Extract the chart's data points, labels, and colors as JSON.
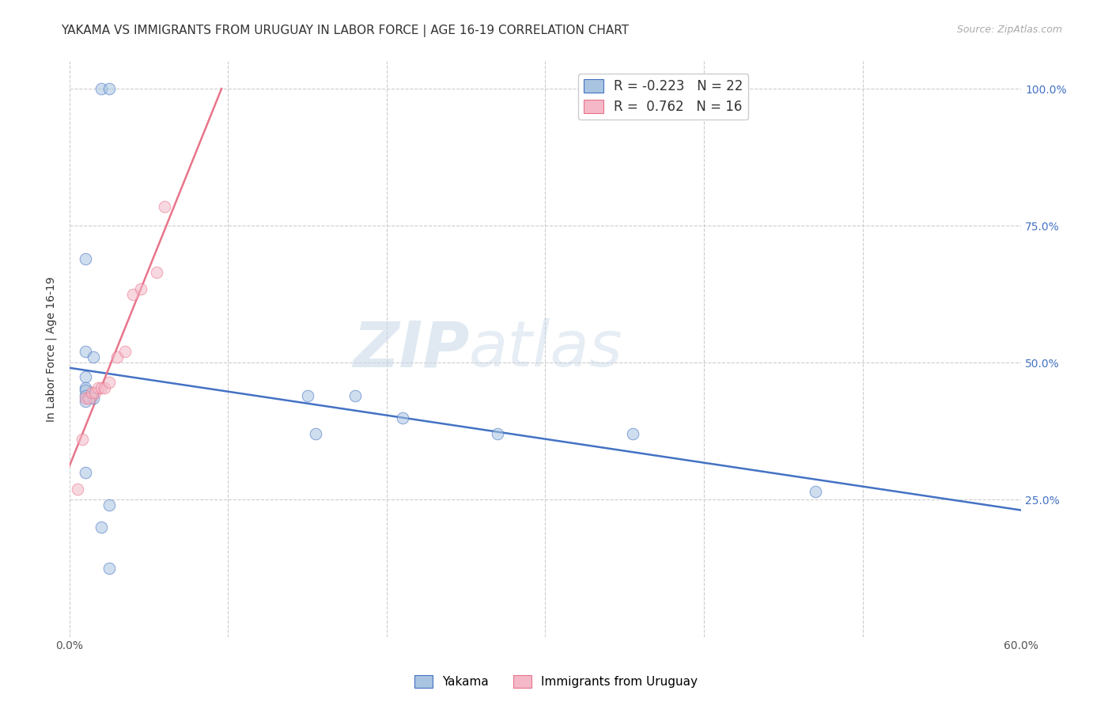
{
  "title": "YAKAMA VS IMMIGRANTS FROM URUGUAY IN LABOR FORCE | AGE 16-19 CORRELATION CHART",
  "source": "Source: ZipAtlas.com",
  "ylabel": "In Labor Force | Age 16-19",
  "xlim": [
    0.0,
    0.6
  ],
  "ylim": [
    0.0,
    1.05
  ],
  "xticks": [
    0.0,
    0.1,
    0.2,
    0.3,
    0.4,
    0.5,
    0.6
  ],
  "xticklabels": [
    "0.0%",
    "",
    "",
    "",
    "",
    "",
    "60.0%"
  ],
  "yticks": [
    0.0,
    0.25,
    0.5,
    0.75,
    1.0
  ],
  "yticklabels_right": [
    "",
    "25.0%",
    "50.0%",
    "75.0%",
    "100.0%"
  ],
  "yakama_x": [
    0.02,
    0.025,
    0.01,
    0.01,
    0.015,
    0.01,
    0.01,
    0.01,
    0.01,
    0.01,
    0.015,
    0.15,
    0.155,
    0.27,
    0.355,
    0.025,
    0.02,
    0.025,
    0.47,
    0.18,
    0.21,
    0.01
  ],
  "yakama_y": [
    1.0,
    1.0,
    0.69,
    0.52,
    0.51,
    0.475,
    0.455,
    0.45,
    0.44,
    0.43,
    0.435,
    0.44,
    0.37,
    0.37,
    0.37,
    0.24,
    0.2,
    0.125,
    0.265,
    0.44,
    0.4,
    0.3
  ],
  "uruguay_x": [
    0.005,
    0.008,
    0.01,
    0.012,
    0.014,
    0.016,
    0.018,
    0.02,
    0.022,
    0.025,
    0.03,
    0.035,
    0.04,
    0.045,
    0.055,
    0.06
  ],
  "uruguay_y": [
    0.27,
    0.36,
    0.435,
    0.435,
    0.445,
    0.445,
    0.455,
    0.455,
    0.455,
    0.465,
    0.51,
    0.52,
    0.625,
    0.635,
    0.665,
    0.785
  ],
  "yakama_color": "#a8c4e0",
  "uruguay_color": "#f4b8c8",
  "yakama_line_color": "#4472c4",
  "uruguay_line_color": "#e8748a",
  "bottom_legend": [
    "Yakama",
    "Immigrants from Uruguay"
  ],
  "watermark_zip": "ZIP",
  "watermark_atlas": "atlas",
  "marker_size": 110,
  "marker_alpha": 0.55,
  "grid_color": "#cccccc",
  "grid_linestyle": "--",
  "background_color": "#ffffff",
  "title_fontsize": 11,
  "axis_label_fontsize": 10,
  "tick_fontsize": 10,
  "right_ytick_color": "#4472c4"
}
